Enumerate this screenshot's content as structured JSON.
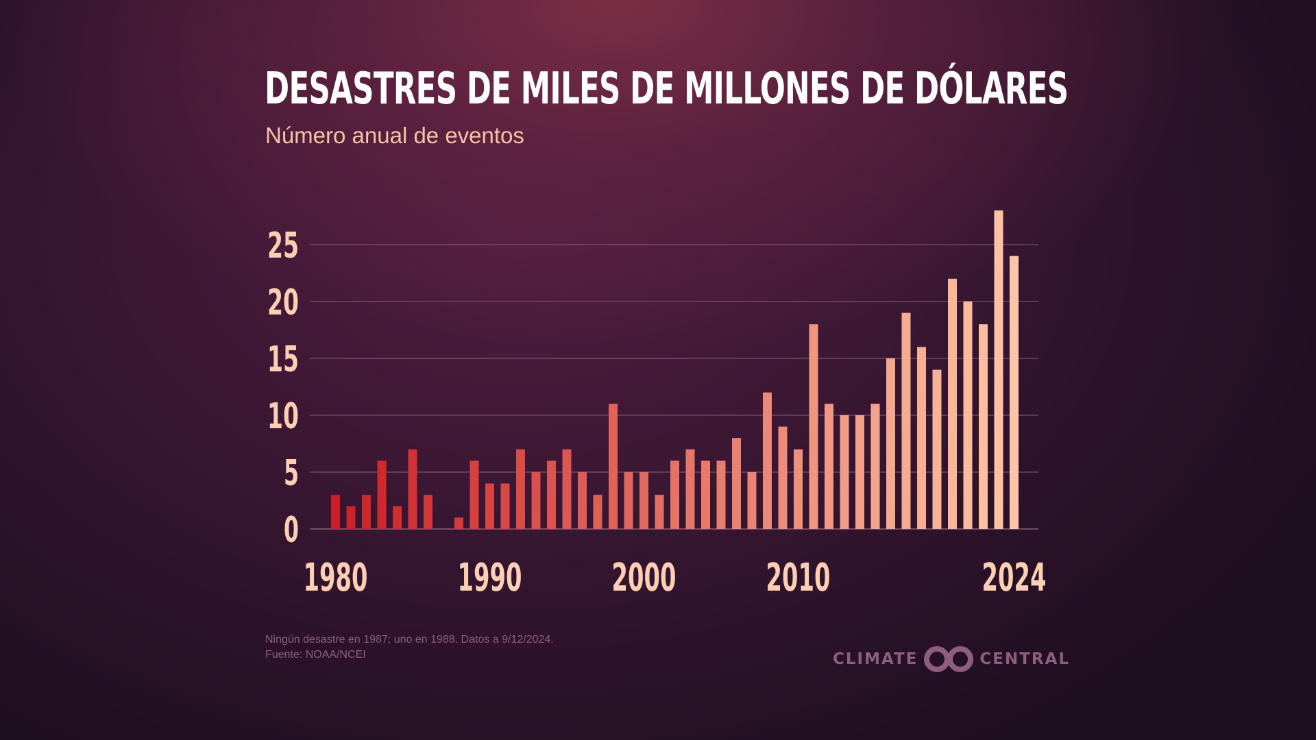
{
  "title": "DESASTRES DE MILES DE MILLONES DE DÓLARES",
  "subtitle": "Número anual de eventos",
  "footnote": {
    "line1": "Ningún desastre en 1987; uno en 1988. Datos a 9/12/2024.",
    "line2": "Fuente: NOAA/NCEI"
  },
  "logo": {
    "left_word": "CLIMATE",
    "right_word": "CENTRAL",
    "icon": "climate-central-rings-icon"
  },
  "colors": {
    "bar_start": "#cc1f26",
    "bar_end": "#fdc6a6",
    "grid": "#8a5f7c",
    "tick_text": "#fdcfb4",
    "title": "#ffffff",
    "subtitle": "#f7c2a6",
    "footnote": "#8e5e80"
  },
  "chart_data": {
    "type": "bar",
    "title": "DESASTRES DE MILES DE MILLONES DE DÓLARES",
    "subtitle": "Número anual de eventos",
    "xlabel": "",
    "ylabel": "",
    "ylim": [
      0,
      28
    ],
    "yticks": [
      0,
      5,
      10,
      15,
      20,
      25
    ],
    "xtick_labels": [
      "1980",
      "1990",
      "2000",
      "2010",
      "2024"
    ],
    "grid": true,
    "categories": [
      1980,
      1981,
      1982,
      1983,
      1984,
      1985,
      1986,
      1987,
      1988,
      1989,
      1990,
      1991,
      1992,
      1993,
      1994,
      1995,
      1996,
      1997,
      1998,
      1999,
      2000,
      2001,
      2002,
      2003,
      2004,
      2005,
      2006,
      2007,
      2008,
      2009,
      2010,
      2011,
      2012,
      2013,
      2014,
      2015,
      2016,
      2017,
      2018,
      2019,
      2020,
      2021,
      2022,
      2023,
      2024
    ],
    "values": [
      3,
      2,
      3,
      6,
      2,
      7,
      3,
      0,
      1,
      6,
      4,
      4,
      7,
      5,
      6,
      7,
      5,
      3,
      11,
      5,
      5,
      3,
      6,
      7,
      6,
      6,
      8,
      5,
      12,
      9,
      7,
      18,
      11,
      10,
      10,
      11,
      15,
      19,
      16,
      14,
      22,
      20,
      18,
      28,
      24
    ]
  }
}
